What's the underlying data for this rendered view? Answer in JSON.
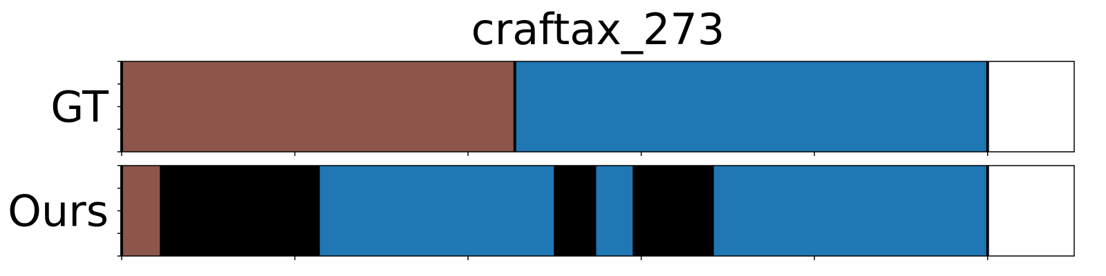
{
  "chart_data": {
    "type": "bar",
    "title": "craftax_273",
    "x_range": [
      0,
      550
    ],
    "x_ticks": [
      0,
      100,
      200,
      300,
      400,
      500
    ],
    "y_ticks_per_row": 5,
    "grid": false,
    "rows": [
      {
        "label": "GT",
        "segments": [
          {
            "start": 0,
            "end": 227,
            "color": "#8c564b"
          },
          {
            "start": 227,
            "end": 500,
            "color": "#1f77b4"
          }
        ],
        "boundaries": [
          0,
          227,
          500
        ]
      },
      {
        "label": "Ours",
        "segments": [
          {
            "start": 0,
            "end": 22,
            "color": "#8c564b"
          },
          {
            "start": 22,
            "end": 114.5,
            "color": "#000000"
          },
          {
            "start": 114.5,
            "end": 249.5,
            "color": "#1f77b4"
          },
          {
            "start": 249.5,
            "end": 274,
            "color": "#000000"
          },
          {
            "start": 274,
            "end": 295,
            "color": "#1f77b4"
          },
          {
            "start": 295,
            "end": 342,
            "color": "#000000"
          },
          {
            "start": 342,
            "end": 500,
            "color": "#1f77b4"
          }
        ],
        "boundaries": [
          0,
          500
        ]
      }
    ]
  }
}
